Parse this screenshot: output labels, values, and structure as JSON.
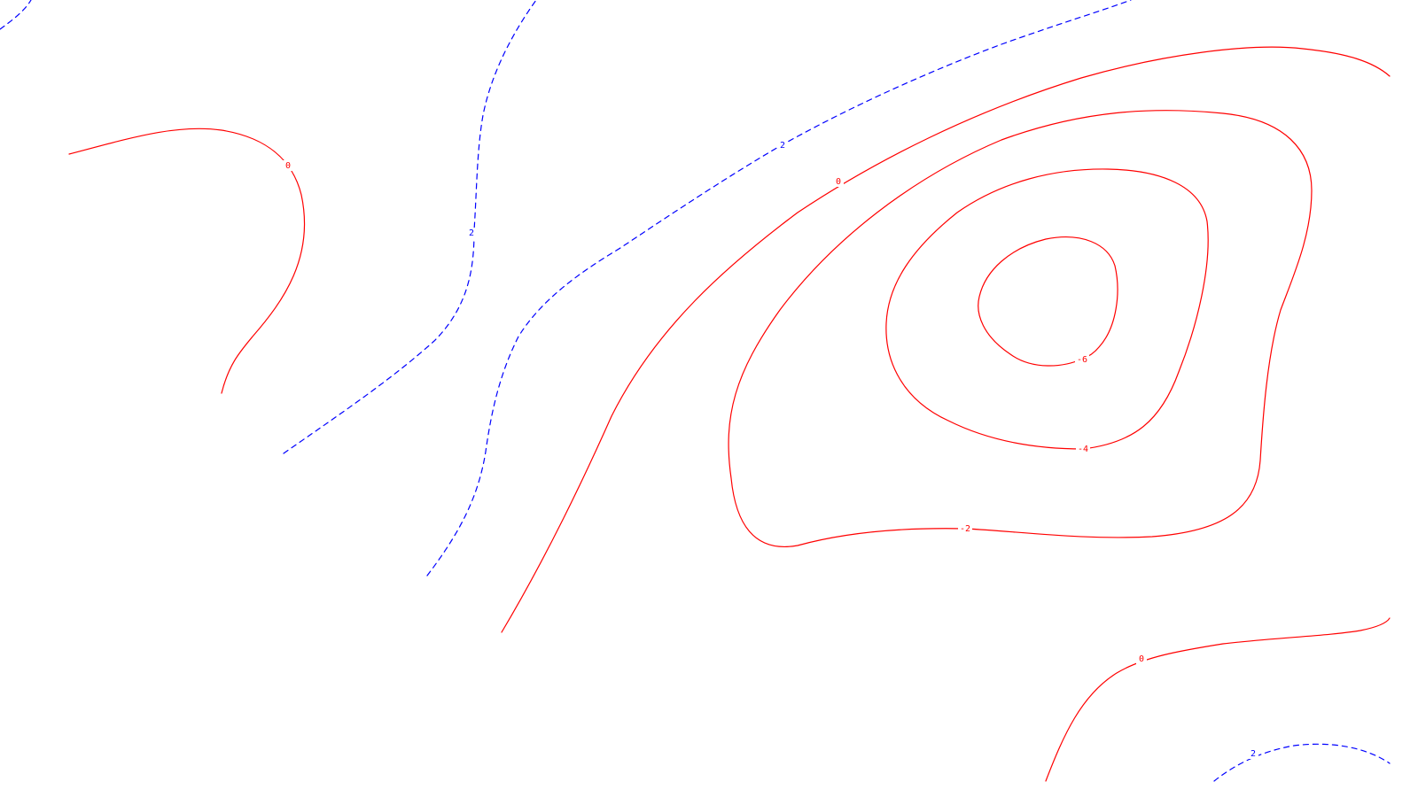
{
  "map": {
    "colors": {
      "negative": "#ff0000",
      "positive": "#0000ff",
      "background": "#ffffff"
    },
    "contours": [
      {
        "id": "c-0-west",
        "level": 0,
        "label": "0",
        "style": "solid"
      },
      {
        "id": "c-0-central",
        "level": 0,
        "label": "0",
        "style": "solid"
      },
      {
        "id": "c-neg2-loop",
        "level": -2,
        "label": "-2",
        "style": "solid"
      },
      {
        "id": "c-neg4-loop",
        "level": -4,
        "label": "-4",
        "style": "solid"
      },
      {
        "id": "c-neg6-loop",
        "level": -6,
        "label": "-6",
        "style": "solid"
      },
      {
        "id": "c-0-southeast",
        "level": 0,
        "label": "0",
        "style": "solid"
      },
      {
        "id": "c-2-ridge",
        "level": 2,
        "label": "2",
        "style": "dashed"
      },
      {
        "id": "c-2-valley",
        "level": 2,
        "label": "2",
        "style": "dashed"
      },
      {
        "id": "c-2-southeast",
        "level": 2,
        "label": "2",
        "style": "dashed"
      }
    ]
  }
}
